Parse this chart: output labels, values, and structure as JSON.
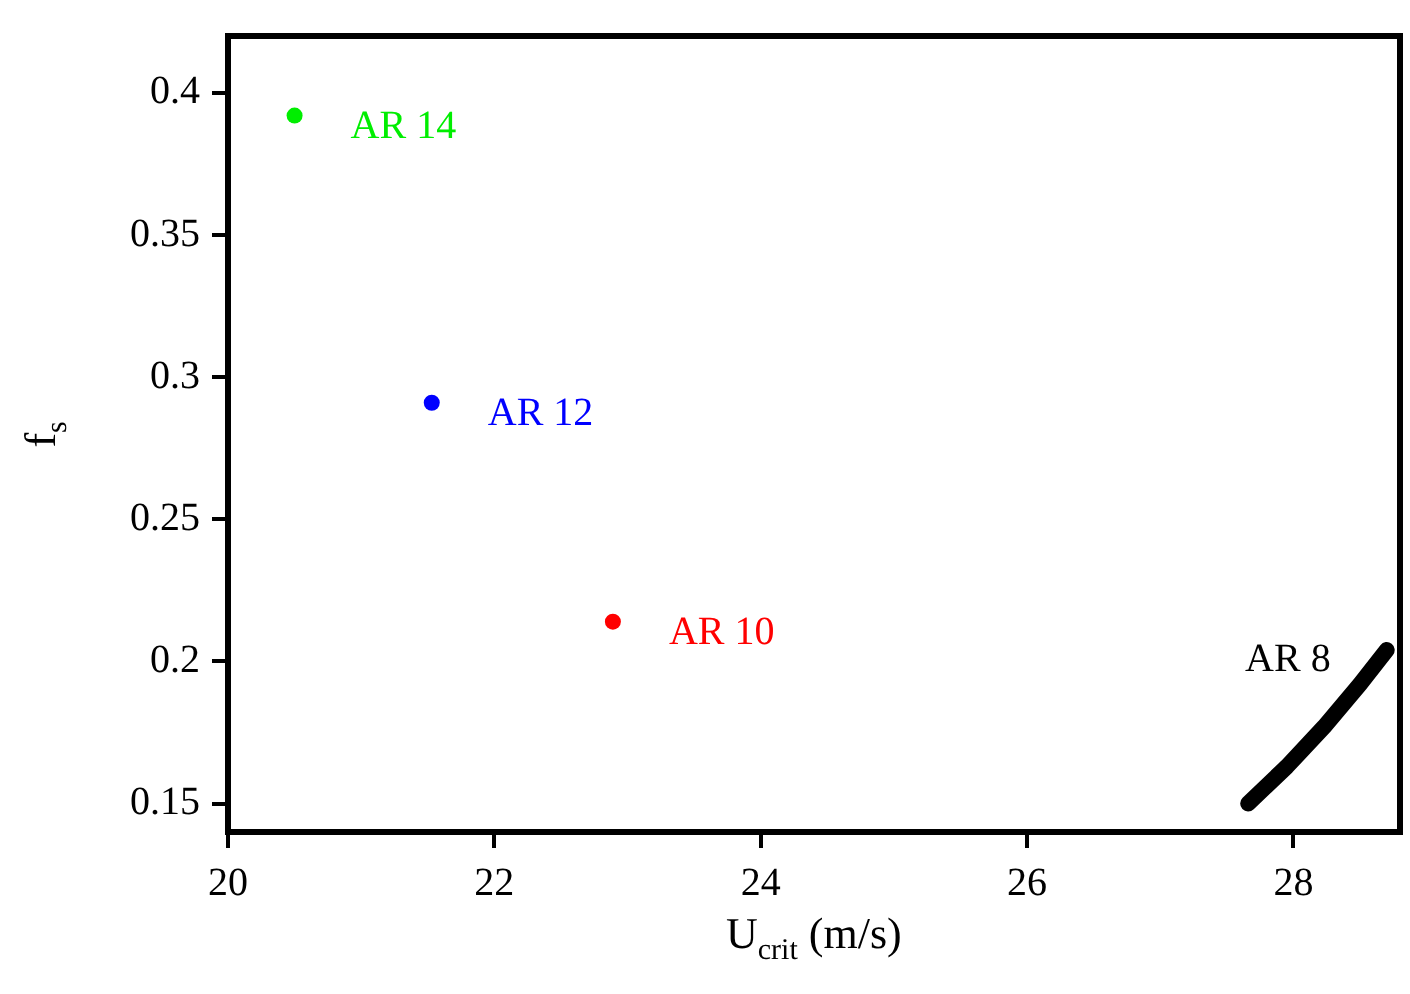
{
  "chart_data": {
    "type": "scatter",
    "xlabel": "U$_{crit}$ (m/s)",
    "ylabel": "f$_{s}$",
    "xlim": [
      20,
      28.8
    ],
    "xticks": [
      20,
      22,
      24,
      26,
      28
    ],
    "ylim": [
      0.14,
      0.42
    ],
    "yticks": [
      0.15,
      0.2,
      0.25,
      0.3,
      0.35,
      0.4
    ],
    "marker": "circle",
    "legend": false,
    "series": [
      {
        "name": "AR 14",
        "color": "#00ee00",
        "x": [
          20.5
        ],
        "values": [
          0.392
        ]
      },
      {
        "name": "AR 12",
        "color": "#0000ff",
        "x": [
          21.53
        ],
        "values": [
          0.291
        ]
      },
      {
        "name": "AR 10",
        "color": "#ff0000",
        "x": [
          22.89
        ],
        "values": [
          0.214
        ]
      },
      {
        "name": "AR 8",
        "type": "line",
        "color": "#000000",
        "marker": "none",
        "x": [
          27.66,
          27.95,
          28.23,
          28.5,
          28.7
        ],
        "values": [
          0.15,
          0.163,
          0.177,
          0.192,
          0.204
        ]
      }
    ]
  }
}
